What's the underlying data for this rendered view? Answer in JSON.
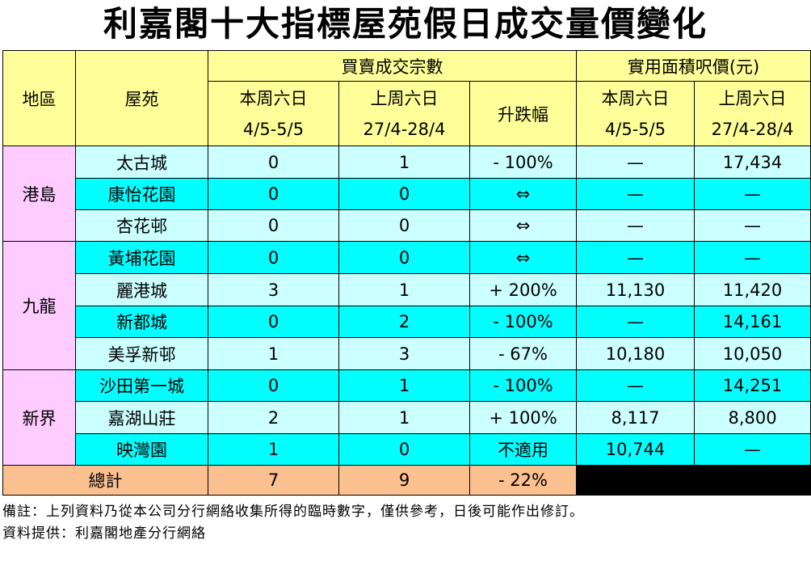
{
  "title": "利嘉閣十大指標屋苑假日成交量價變化",
  "header": {
    "region": "地區",
    "estate": "屋苑",
    "transactions_group": "買賣成交宗數",
    "price_group": "實用面積呎價(元)",
    "this_week": "本周六日",
    "this_week_dates": "4/5-5/5",
    "last_week": "上周六日",
    "last_week_dates": "27/4-28/4",
    "change": "升跌幅"
  },
  "regions": [
    "港島",
    "九龍",
    "新界"
  ],
  "rows": [
    {
      "estate": "太古城",
      "this_tx": "0",
      "last_tx": "1",
      "change": "- 100%",
      "this_price": "—",
      "last_price": "17,434"
    },
    {
      "estate": "康怡花園",
      "this_tx": "0",
      "last_tx": "0",
      "change": "⇔",
      "this_price": "—",
      "last_price": "—"
    },
    {
      "estate": "杏花邨",
      "this_tx": "0",
      "last_tx": "0",
      "change": "⇔",
      "this_price": "—",
      "last_price": "—"
    },
    {
      "estate": "黃埔花園",
      "this_tx": "0",
      "last_tx": "0",
      "change": "⇔",
      "this_price": "—",
      "last_price": "—"
    },
    {
      "estate": "麗港城",
      "this_tx": "3",
      "last_tx": "1",
      "change": "+ 200%",
      "this_price": "11,130",
      "last_price": "11,420"
    },
    {
      "estate": "新都城",
      "this_tx": "0",
      "last_tx": "2",
      "change": "- 100%",
      "this_price": "—",
      "last_price": "14,161"
    },
    {
      "estate": "美孚新邨",
      "this_tx": "1",
      "last_tx": "3",
      "change": "- 67%",
      "this_price": "10,180",
      "last_price": "10,050"
    },
    {
      "estate": "沙田第一城",
      "this_tx": "0",
      "last_tx": "1",
      "change": "- 100%",
      "this_price": "—",
      "last_price": "14,251"
    },
    {
      "estate": "嘉湖山莊",
      "this_tx": "2",
      "last_tx": "1",
      "change": "+ 100%",
      "this_price": "8,117",
      "last_price": "8,800"
    },
    {
      "estate": "映灣園",
      "this_tx": "1",
      "last_tx": "0",
      "change": "不適用",
      "this_price": "10,744",
      "last_price": "—"
    }
  ],
  "total": {
    "label": "總計",
    "this_tx": "7",
    "last_tx": "9",
    "change": "- 22%"
  },
  "notes": {
    "remark": "備註：上列資料乃從本公司分行網絡收集所得的臨時數字，僅供參考，日後可能作出修訂。",
    "source": "資料提供：利嘉閣地產分行網絡"
  },
  "colors": {
    "header_bg": "#ffff99",
    "region_bg": "#ffccff",
    "row_light_bg": "#ccffff",
    "row_cyan_bg": "#00ffff",
    "total_bg": "#fac090"
  }
}
